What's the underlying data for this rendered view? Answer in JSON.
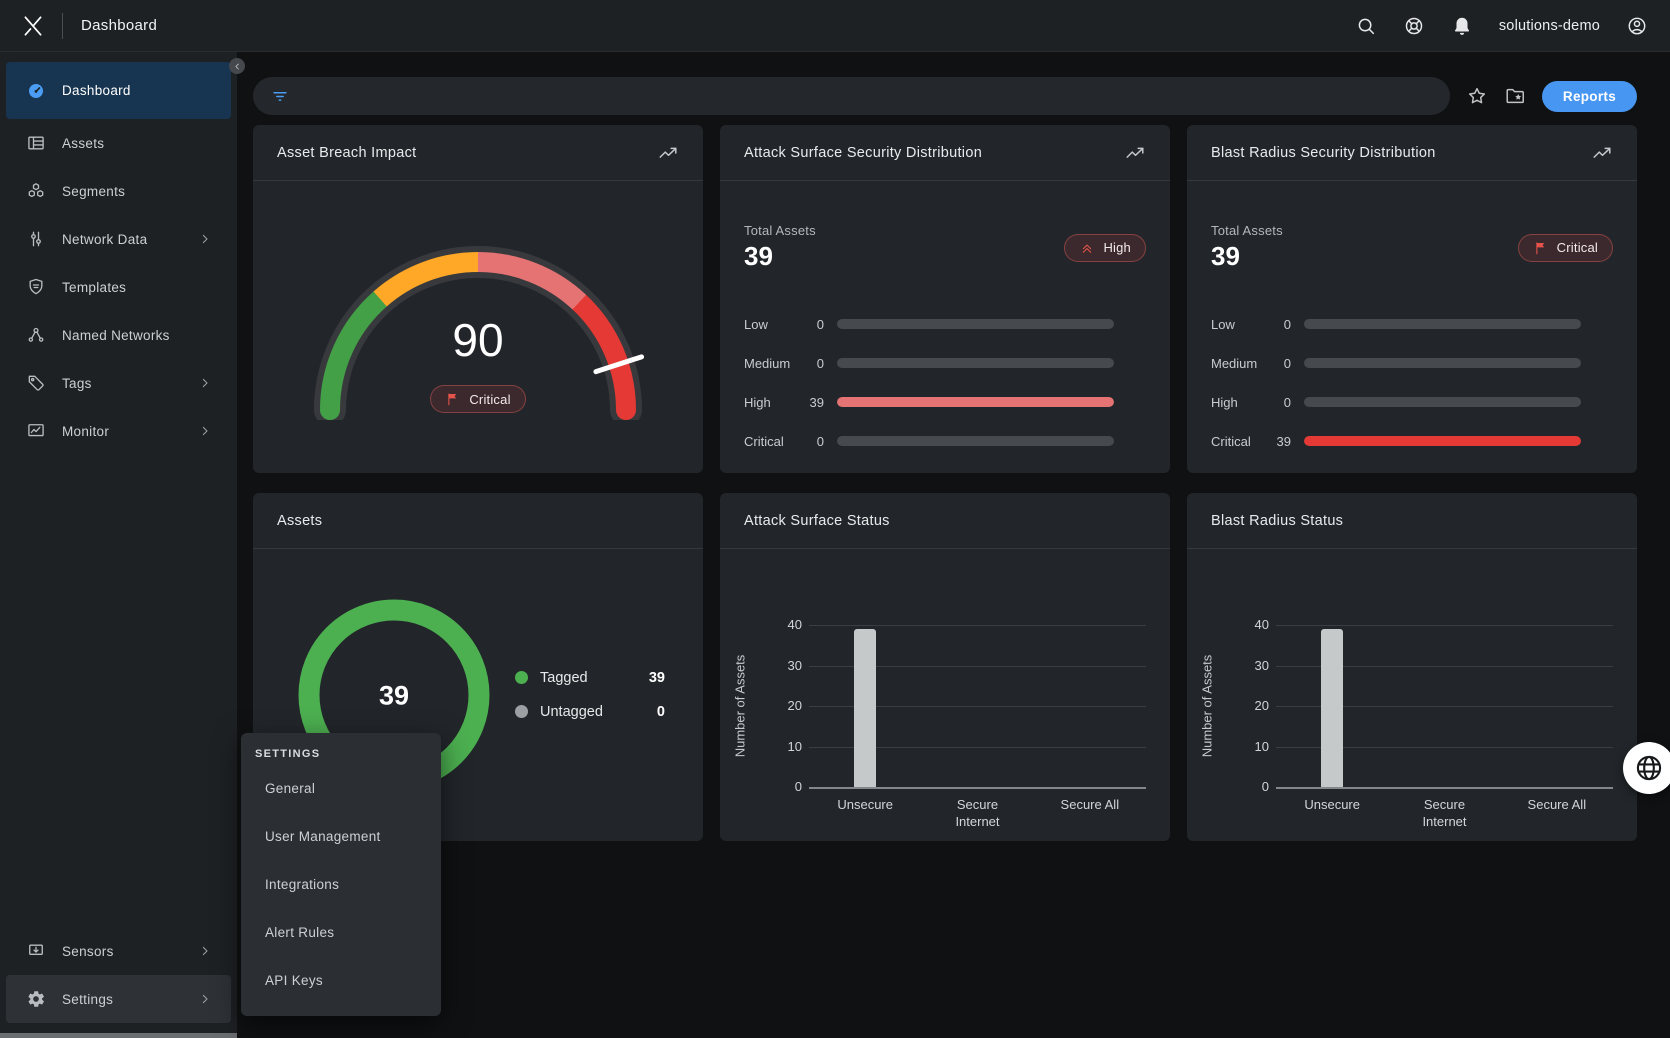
{
  "topbar": {
    "title": "Dashboard",
    "account": "solutions-demo"
  },
  "sidebar": {
    "items": [
      {
        "label": "Dashboard",
        "icon": "speedometer-icon",
        "active": true
      },
      {
        "label": "Assets",
        "icon": "table-icon"
      },
      {
        "label": "Segments",
        "icon": "hexagons-icon"
      },
      {
        "label": "Network Data",
        "icon": "sliders-icon",
        "has_submenu": true
      },
      {
        "label": "Templates",
        "icon": "shield-icon"
      },
      {
        "label": "Named Networks",
        "icon": "network-nodes-icon"
      },
      {
        "label": "Tags",
        "icon": "tag-icon",
        "has_submenu": true
      },
      {
        "label": "Monitor",
        "icon": "monitor-chart-icon",
        "has_submenu": true
      }
    ],
    "bottom_items": [
      {
        "label": "Sensors",
        "icon": "sensor-icon",
        "has_submenu": true
      },
      {
        "label": "Settings",
        "icon": "gear-icon",
        "has_submenu": true,
        "highlighted": true
      }
    ]
  },
  "settings_menu": {
    "header": "SETTINGS",
    "items": [
      "General",
      "User Management",
      "Integrations",
      "Alert Rules",
      "API Keys"
    ]
  },
  "toolbar": {
    "reports_label": "Reports"
  },
  "colors": {
    "accent_blue": "#4a9df3",
    "green": "#4caf50",
    "amber": "#ffa726",
    "salmon": "#e57373",
    "red": "#e53935",
    "grey_bar": "#c6c9ca"
  },
  "chart_data": [
    {
      "id": "asset-breach-impact",
      "type": "gauge",
      "title": "Asset Breach Impact",
      "value": 90,
      "min": 0,
      "max": 100,
      "status": "Critical",
      "status_icon": "flag-icon",
      "segments": [
        {
          "from": 0,
          "to": 27,
          "color": "#43a047"
        },
        {
          "from": 27,
          "to": 50,
          "color": "#ffa726"
        },
        {
          "from": 50,
          "to": 74,
          "color": "#e57373"
        },
        {
          "from": 74,
          "to": 100,
          "color": "#e53935"
        }
      ]
    },
    {
      "id": "attack-surface-security-distribution",
      "type": "bar",
      "orientation": "horizontal",
      "title": "Attack Surface Security Distribution",
      "total_label": "Total Assets",
      "total": 39,
      "badge": "High",
      "badge_icon": "double-chevron-up-icon",
      "categories": [
        "Low",
        "Medium",
        "High",
        "Critical"
      ],
      "values": [
        0,
        0,
        39,
        0
      ],
      "max": 39,
      "bar_color": "#e57373"
    },
    {
      "id": "blast-radius-security-distribution",
      "type": "bar",
      "orientation": "horizontal",
      "title": "Blast Radius Security Distribution",
      "total_label": "Total Assets",
      "total": 39,
      "badge": "Critical",
      "badge_icon": "flag-icon",
      "categories": [
        "Low",
        "Medium",
        "High",
        "Critical"
      ],
      "values": [
        0,
        0,
        0,
        39
      ],
      "max": 39,
      "bar_color": "#e53935"
    },
    {
      "id": "assets",
      "type": "donut",
      "title": "Assets",
      "center_value": 39,
      "slices": [
        {
          "label": "Tagged",
          "value": 39,
          "color": "#4caf50"
        },
        {
          "label": "Untagged",
          "value": 0,
          "color": "#9ca0a3"
        }
      ]
    },
    {
      "id": "attack-surface-status",
      "type": "bar",
      "orientation": "vertical",
      "title": "Attack Surface Status",
      "categories": [
        "Unsecure",
        "Secure Internet",
        "Secure All"
      ],
      "values": [
        39,
        0,
        0
      ],
      "ylabel": "Number of Assets",
      "yticks": [
        0,
        10,
        20,
        30,
        40
      ],
      "ylim": [
        0,
        40
      ],
      "bar_color": "#c6c9ca",
      "grid": true
    },
    {
      "id": "blast-radius-status",
      "type": "bar",
      "orientation": "vertical",
      "title": "Blast Radius Status",
      "categories": [
        "Unsecure",
        "Secure Internet",
        "Secure All"
      ],
      "values": [
        39,
        0,
        0
      ],
      "ylabel": "Number of Assets",
      "yticks": [
        0,
        10,
        20,
        30,
        40
      ],
      "ylim": [
        0,
        40
      ],
      "bar_color": "#c6c9ca",
      "grid": true
    }
  ]
}
